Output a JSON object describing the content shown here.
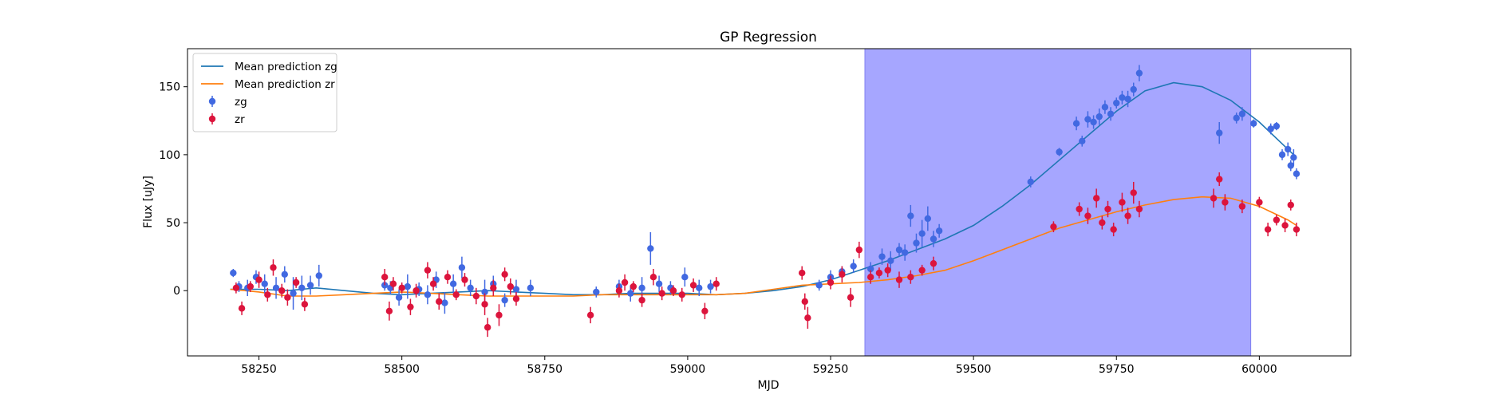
{
  "chart_data": {
    "type": "scatter",
    "title": "GP Regression",
    "xlabel": "MJD",
    "ylabel": "Flux [uJy]",
    "xlim": [
      58125,
      60160
    ],
    "ylim": [
      -48,
      178
    ],
    "xticks": [
      58250,
      58500,
      58750,
      59000,
      59250,
      59500,
      59750,
      60000
    ],
    "yticks": [
      0,
      50,
      100,
      150
    ],
    "grid": false,
    "legend_position": "top-left",
    "shaded_region": {
      "x0": 59310,
      "x1": 59985,
      "color": "#a6a6ff"
    },
    "series": [
      {
        "name": "Mean prediction zg",
        "kind": "line",
        "color": "#1f77b4",
        "x": [
          58200,
          58250,
          58300,
          58350,
          58400,
          58450,
          58500,
          58550,
          58600,
          58650,
          58700,
          58750,
          58800,
          58850,
          58900,
          58950,
          59000,
          59050,
          59100,
          59150,
          59200,
          59250,
          59300,
          59350,
          59400,
          59450,
          59500,
          59550,
          59600,
          59650,
          59700,
          59750,
          59800,
          59850,
          59900,
          59950,
          60000,
          60050,
          60065
        ],
        "y": [
          1,
          1,
          0,
          2,
          0,
          -2,
          -3,
          -2,
          -1,
          0,
          -1,
          -2,
          -3,
          -3,
          -2,
          -2,
          -2,
          -3,
          -2,
          0,
          3,
          8,
          15,
          22,
          30,
          38,
          48,
          62,
          78,
          96,
          114,
          132,
          147,
          153,
          150,
          140,
          124,
          104,
          98
        ]
      },
      {
        "name": "Mean prediction zr",
        "kind": "line",
        "color": "#ff7f0e",
        "x": [
          58200,
          58250,
          58300,
          58350,
          58400,
          58450,
          58500,
          58550,
          58600,
          58650,
          58700,
          58750,
          58800,
          58850,
          58900,
          58950,
          59000,
          59050,
          59100,
          59150,
          59200,
          59250,
          59300,
          59350,
          59400,
          59450,
          59500,
          59550,
          59600,
          59650,
          59700,
          59750,
          59800,
          59850,
          59900,
          59950,
          60000,
          60050,
          60065
        ],
        "y": [
          1,
          -1,
          -4,
          -4,
          -3,
          -2,
          -1,
          -2,
          -3,
          -4,
          -4,
          -4,
          -4,
          -3,
          -3,
          -3,
          -3,
          -3,
          -2,
          1,
          4,
          5,
          6,
          8,
          11,
          15,
          22,
          30,
          38,
          46,
          52,
          58,
          63,
          67,
          69,
          68,
          62,
          52,
          48
        ]
      },
      {
        "name": "zg",
        "kind": "errorbar",
        "color": "#4169e1",
        "x": [
          58205,
          58215,
          58230,
          58245,
          58260,
          58280,
          58295,
          58310,
          58325,
          58340,
          58355,
          58470,
          58480,
          58495,
          58510,
          58530,
          58545,
          58560,
          58575,
          58590,
          58605,
          58620,
          58645,
          58660,
          58680,
          58700,
          58725,
          58840,
          58880,
          58900,
          58920,
          58935,
          58950,
          58970,
          58995,
          59020,
          59040,
          59230,
          59250,
          59270,
          59290,
          59320,
          59340,
          59355,
          59370,
          59380,
          59390,
          59400,
          59410,
          59420,
          59430,
          59440,
          59600,
          59650,
          59680,
          59690,
          59700,
          59710,
          59720,
          59730,
          59740,
          59750,
          59760,
          59770,
          59780,
          59790,
          59930,
          59960,
          59970,
          59990,
          60020,
          60030,
          60040,
          60050,
          60055,
          60060,
          60065
        ],
        "y": [
          13,
          3,
          2,
          10,
          5,
          2,
          12,
          -2,
          2,
          4,
          11,
          4,
          2,
          -5,
          3,
          1,
          -3,
          8,
          -9,
          5,
          17,
          2,
          -1,
          5,
          -7,
          1,
          2,
          -1,
          3,
          -2,
          2,
          31,
          5,
          2,
          10,
          2,
          3,
          4,
          10,
          14,
          18,
          16,
          25,
          22,
          30,
          28,
          55,
          35,
          42,
          53,
          38,
          44,
          80,
          102,
          123,
          110,
          126,
          124,
          128,
          135,
          130,
          138,
          142,
          141,
          148,
          160,
          116,
          127,
          130,
          123,
          119,
          121,
          100,
          104,
          92,
          98,
          86
        ],
        "err": [
          3,
          4,
          6,
          5,
          7,
          8,
          6,
          12,
          9,
          7,
          8,
          4,
          5,
          6,
          9,
          5,
          7,
          6,
          8,
          7,
          8,
          6,
          9,
          6,
          5,
          7,
          6,
          4,
          5,
          6,
          8,
          12,
          6,
          5,
          7,
          6,
          5,
          4,
          5,
          4,
          5,
          5,
          6,
          7,
          5,
          6,
          8,
          7,
          10,
          9,
          6,
          5,
          4,
          3,
          5,
          4,
          6,
          5,
          6,
          5,
          5,
          4,
          5,
          6,
          5,
          6,
          8,
          4,
          5,
          3,
          4,
          3,
          4,
          5,
          4,
          6,
          4
        ]
      },
      {
        "name": "zr",
        "kind": "errorbar",
        "color": "#dc143c",
        "x": [
          58210,
          58220,
          58235,
          58250,
          58265,
          58275,
          58290,
          58300,
          58315,
          58330,
          58470,
          58478,
          58485,
          58500,
          58515,
          58525,
          58545,
          58555,
          58565,
          58580,
          58595,
          58610,
          58630,
          58645,
          58650,
          58660,
          58670,
          58680,
          58690,
          58700,
          58830,
          58880,
          58890,
          58905,
          58920,
          58940,
          58955,
          58975,
          58990,
          59010,
          59030,
          59050,
          59200,
          59205,
          59210,
          59250,
          59270,
          59285,
          59300,
          59320,
          59335,
          59350,
          59370,
          59390,
          59410,
          59430,
          59640,
          59685,
          59700,
          59715,
          59725,
          59735,
          59745,
          59760,
          59770,
          59780,
          59790,
          59920,
          59930,
          59940,
          59970,
          60000,
          60015,
          60030,
          60045,
          60055,
          60065
        ],
        "y": [
          2,
          -13,
          3,
          8,
          -3,
          17,
          0,
          -5,
          6,
          -10,
          10,
          -15,
          5,
          2,
          -12,
          0,
          15,
          5,
          -8,
          10,
          -3,
          8,
          -4,
          -10,
          -27,
          2,
          -18,
          12,
          3,
          -6,
          -18,
          0,
          6,
          3,
          -7,
          10,
          -2,
          0,
          -3,
          4,
          -15,
          5,
          13,
          -8,
          -20,
          6,
          12,
          -5,
          30,
          10,
          13,
          15,
          8,
          10,
          15,
          20,
          47,
          60,
          55,
          68,
          50,
          60,
          45,
          65,
          55,
          72,
          60,
          68,
          82,
          65,
          62,
          65,
          45,
          52,
          48,
          63,
          45
        ],
        "err": [
          4,
          5,
          4,
          6,
          5,
          6,
          5,
          6,
          4,
          5,
          6,
          7,
          5,
          4,
          6,
          5,
          6,
          5,
          6,
          5,
          4,
          5,
          6,
          8,
          7,
          6,
          8,
          5,
          6,
          5,
          6,
          5,
          6,
          4,
          5,
          6,
          5,
          4,
          5,
          5,
          6,
          5,
          5,
          6,
          8,
          5,
          6,
          7,
          6,
          5,
          4,
          5,
          6,
          5,
          4,
          5,
          4,
          5,
          6,
          7,
          5,
          6,
          5,
          7,
          6,
          8,
          6,
          7,
          5,
          6,
          5,
          4,
          5,
          4,
          5,
          4,
          5
        ]
      }
    ]
  }
}
